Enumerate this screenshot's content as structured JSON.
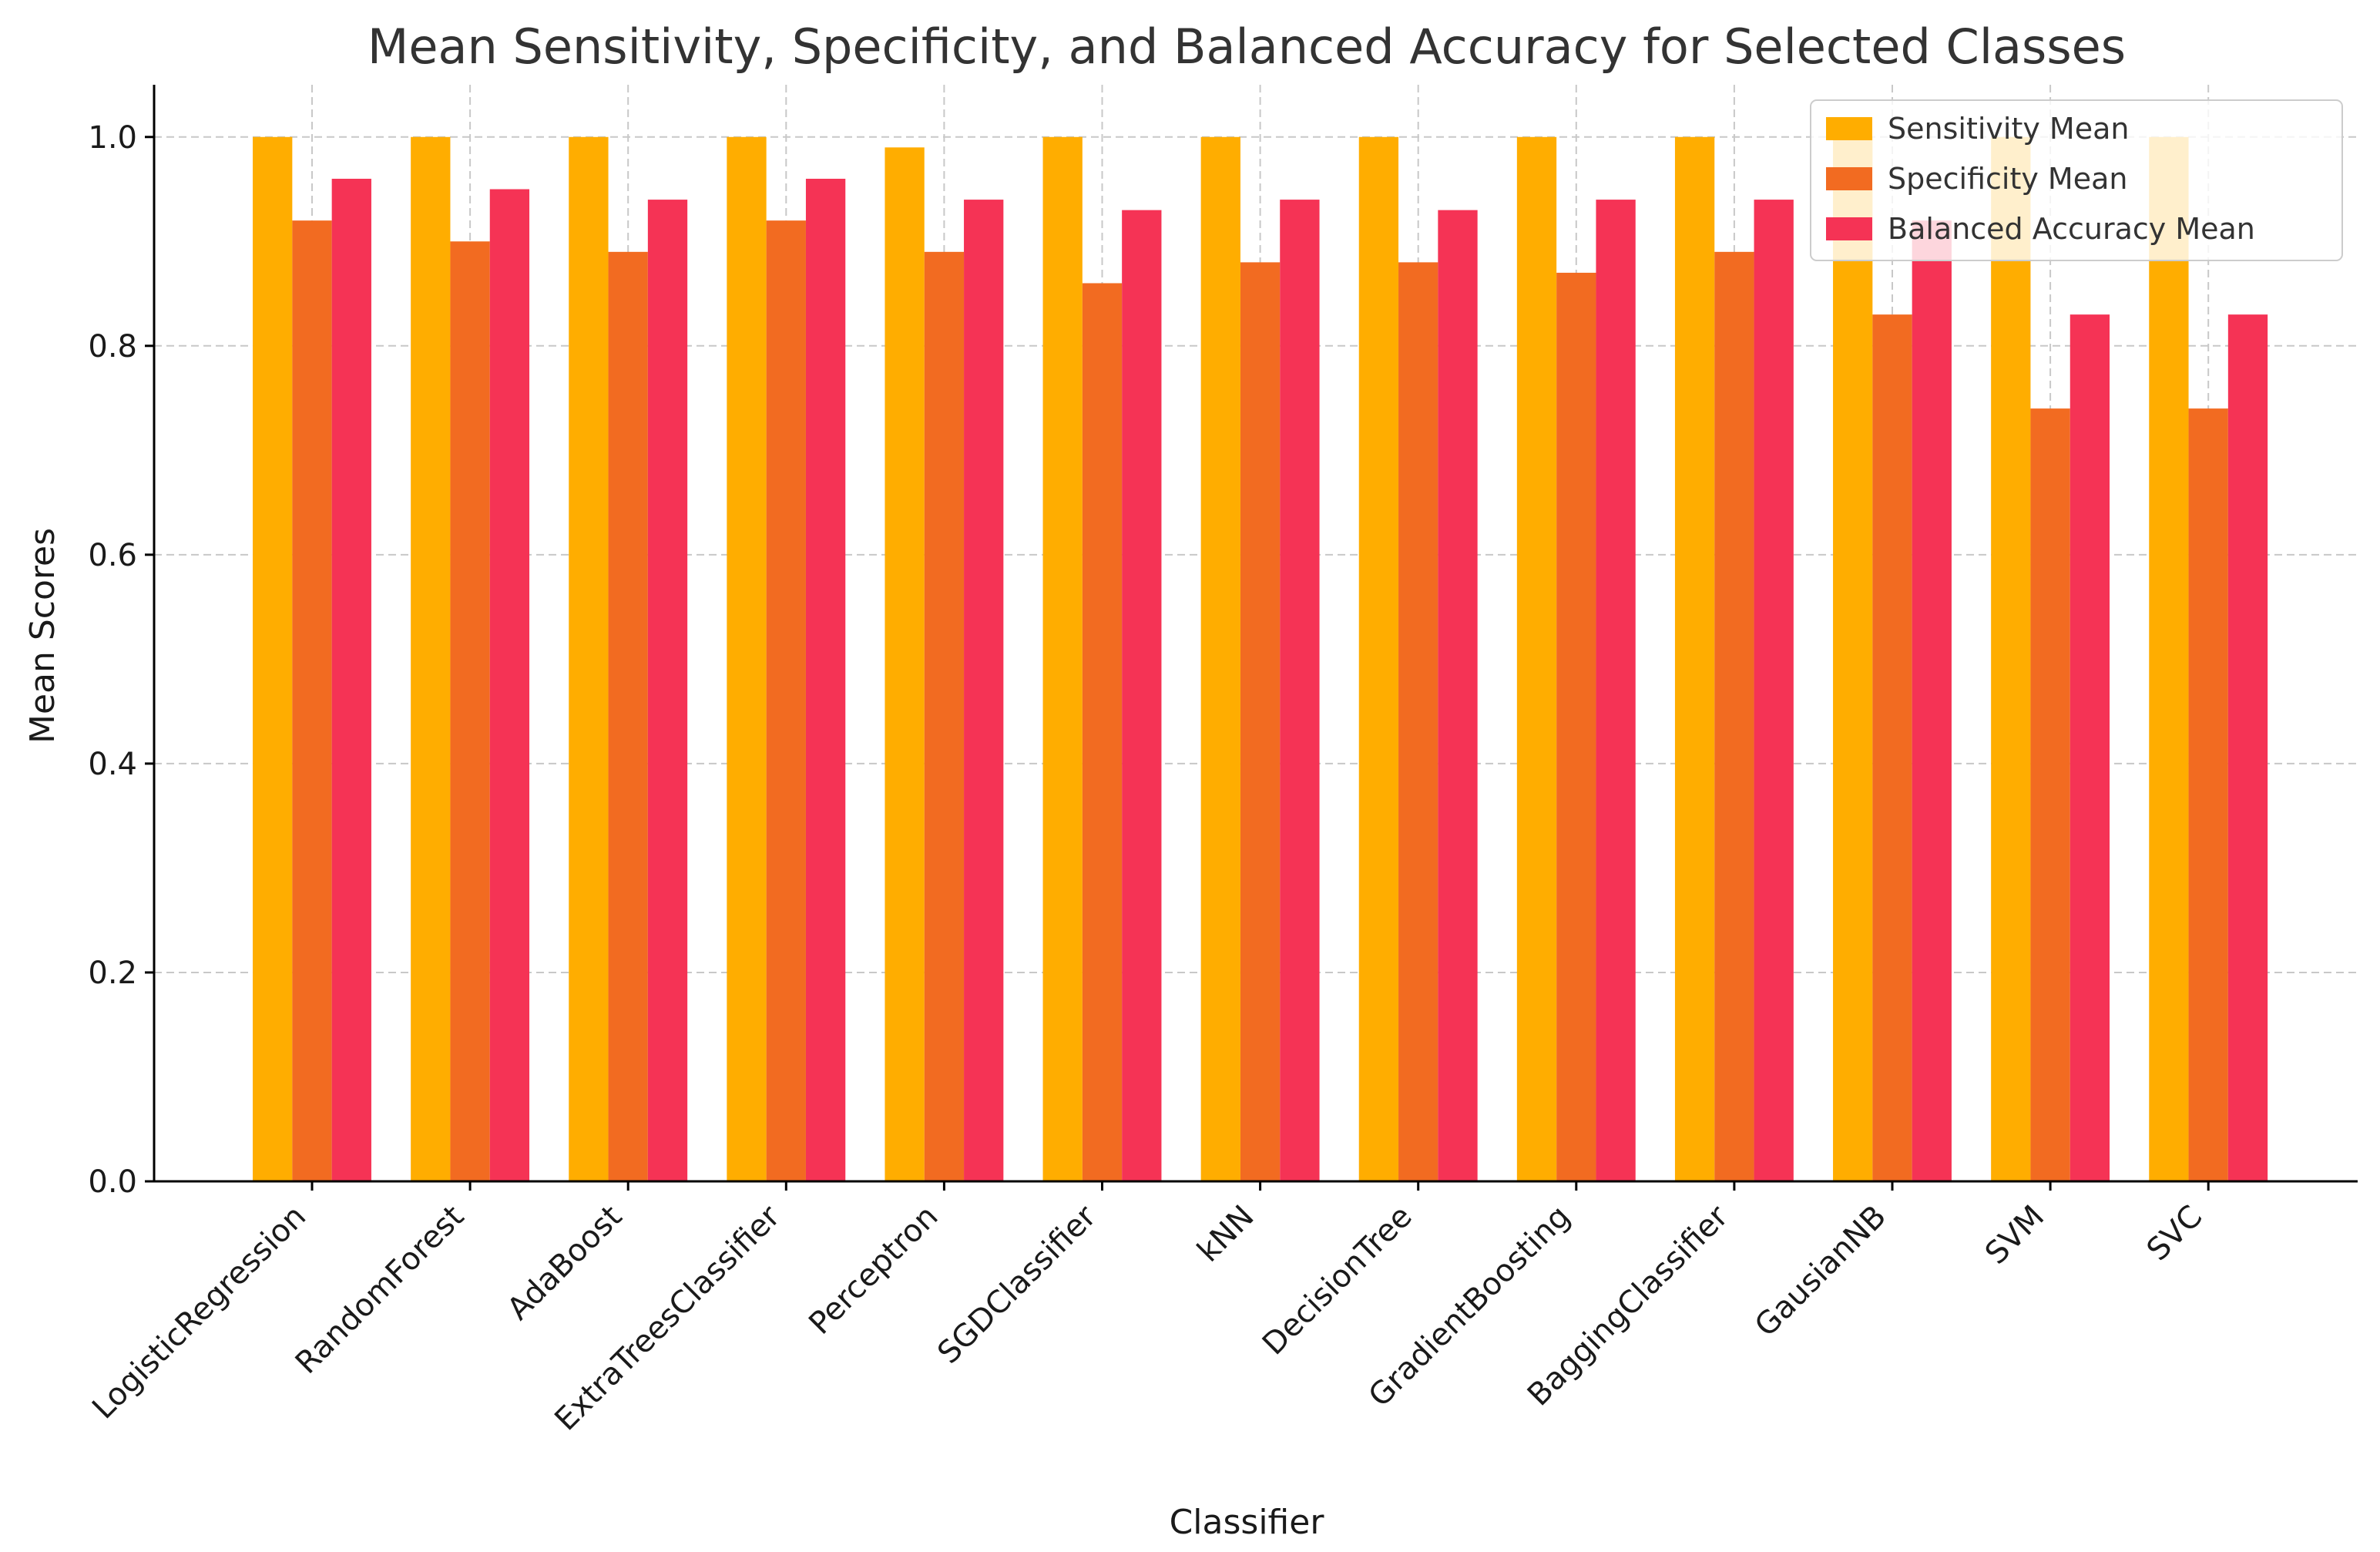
{
  "chart_data": {
    "type": "bar",
    "title": "Mean Sensitivity, Specificity, and Balanced Accuracy for Selected Classes",
    "xlabel": "Classifier",
    "ylabel": "Mean Scores",
    "ylim": [
      0,
      1.05
    ],
    "yticks": [
      "0.0",
      "0.2",
      "0.4",
      "0.6",
      "0.8",
      "1.0"
    ],
    "grid": true,
    "legend_position": "top-right",
    "categories": [
      "LogisticRegression",
      "RandomForest",
      "AdaBoost",
      "ExtraTreesClassifier",
      "Perceptron",
      "SGDClassifier",
      "kNN",
      "DecisionTree",
      "GradientBoosting",
      "BaggingClassifier",
      "GausianNB",
      "SVM",
      "SVC"
    ],
    "series": [
      {
        "name": "Sensitivity Mean",
        "color": "#ffad00",
        "values": [
          1.0,
          1.0,
          1.0,
          1.0,
          0.99,
          1.0,
          1.0,
          1.0,
          1.0,
          1.0,
          1.0,
          1.0,
          1.0
        ]
      },
      {
        "name": "Specificity Mean",
        "color": "#f26b21",
        "values": [
          0.92,
          0.9,
          0.89,
          0.92,
          0.89,
          0.86,
          0.88,
          0.88,
          0.87,
          0.89,
          0.83,
          0.74,
          0.74
        ]
      },
      {
        "name": "Balanced Accuracy Mean",
        "color": "#f53355",
        "values": [
          0.96,
          0.95,
          0.94,
          0.96,
          0.94,
          0.93,
          0.94,
          0.93,
          0.94,
          0.94,
          0.92,
          0.83,
          0.83
        ]
      }
    ]
  }
}
